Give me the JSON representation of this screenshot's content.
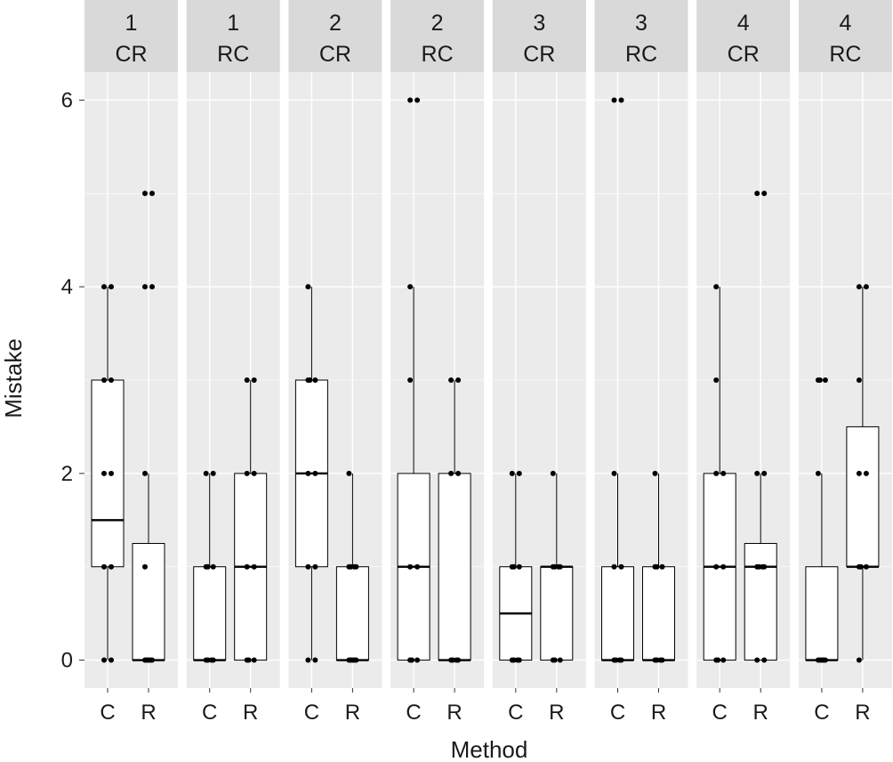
{
  "chart_data": {
    "type": "boxplot",
    "xlabel": "Method",
    "ylabel": "Mistake",
    "ylim": [
      -0.3,
      6.3
    ],
    "y_ticks": [
      0,
      2,
      4,
      6
    ],
    "facet_colors": {
      "panel_bg": "#ebebeb",
      "strip_bg": "#d9d9d9",
      "grid": "#ffffff",
      "box_fill": "#ffffff",
      "box_stroke": "#000000",
      "points": "#000000"
    },
    "panels": [
      {
        "strip": [
          "1",
          "CR"
        ],
        "groups": [
          {
            "x": "C",
            "box": {
              "q1": 1,
              "median": 1.5,
              "q3": 3,
              "whisker_low": 0,
              "whisker_high": 4
            },
            "points": [
              0,
              0,
              1,
              1,
              2,
              2,
              3,
              3,
              4,
              4
            ]
          },
          {
            "x": "R",
            "box": {
              "q1": 0,
              "median": 0,
              "q3": 1.25,
              "whisker_low": 0,
              "whisker_high": 2
            },
            "points": [
              0,
              0,
              0,
              0,
              0,
              1,
              2,
              4,
              4,
              5,
              5
            ]
          }
        ]
      },
      {
        "strip": [
          "1",
          "RC"
        ],
        "groups": [
          {
            "x": "C",
            "box": {
              "q1": 0,
              "median": 0,
              "q3": 1,
              "whisker_low": 0,
              "whisker_high": 2
            },
            "points": [
              0,
              0,
              0,
              0,
              1,
              1,
              1,
              2,
              2
            ]
          },
          {
            "x": "R",
            "box": {
              "q1": 0,
              "median": 1,
              "q3": 2,
              "whisker_low": 0,
              "whisker_high": 3
            },
            "points": [
              0,
              0,
              0,
              1,
              1,
              2,
              2,
              3,
              3
            ]
          }
        ]
      },
      {
        "strip": [
          "2",
          "CR"
        ],
        "groups": [
          {
            "x": "C",
            "box": {
              "q1": 1,
              "median": 2,
              "q3": 3,
              "whisker_low": 0,
              "whisker_high": 4
            },
            "points": [
              0,
              0,
              1,
              1,
              2,
              2,
              3,
              3,
              3,
              4
            ]
          },
          {
            "x": "R",
            "box": {
              "q1": 0,
              "median": 0,
              "q3": 1,
              "whisker_low": 0,
              "whisker_high": 2
            },
            "points": [
              0,
              0,
              0,
              0,
              0,
              1,
              1,
              1,
              1,
              2
            ]
          }
        ]
      },
      {
        "strip": [
          "2",
          "RC"
        ],
        "groups": [
          {
            "x": "C",
            "box": {
              "q1": 0,
              "median": 1,
              "q3": 2,
              "whisker_low": 0,
              "whisker_high": 4
            },
            "points": [
              0,
              0,
              0,
              1,
              1,
              3,
              4,
              6,
              6
            ]
          },
          {
            "x": "R",
            "box": {
              "q1": 0,
              "median": 0,
              "q3": 2,
              "whisker_low": 0,
              "whisker_high": 3
            },
            "points": [
              0,
              0,
              0,
              0,
              2,
              2,
              3,
              3
            ]
          }
        ]
      },
      {
        "strip": [
          "3",
          "CR"
        ],
        "groups": [
          {
            "x": "C",
            "box": {
              "q1": 0,
              "median": 0.5,
              "q3": 1,
              "whisker_low": 0,
              "whisker_high": 2
            },
            "points": [
              0,
              0,
              0,
              0,
              1,
              1,
              1,
              2,
              2
            ]
          },
          {
            "x": "R",
            "box": {
              "q1": 0,
              "median": 1,
              "q3": 1,
              "whisker_low": 0,
              "whisker_high": 2
            },
            "points": [
              0,
              0,
              0,
              1,
              1,
              1,
              1,
              2
            ]
          }
        ]
      },
      {
        "strip": [
          "3",
          "RC"
        ],
        "groups": [
          {
            "x": "C",
            "box": {
              "q1": 0,
              "median": 0,
              "q3": 1,
              "whisker_low": 0,
              "whisker_high": 2
            },
            "points": [
              0,
              0,
              0,
              0,
              1,
              1,
              2,
              6,
              6
            ]
          },
          {
            "x": "R",
            "box": {
              "q1": 0,
              "median": 0,
              "q3": 1,
              "whisker_low": 0,
              "whisker_high": 2
            },
            "points": [
              0,
              0,
              0,
              0,
              1,
              1,
              1,
              2
            ]
          }
        ]
      },
      {
        "strip": [
          "4",
          "CR"
        ],
        "groups": [
          {
            "x": "C",
            "box": {
              "q1": 0,
              "median": 1,
              "q3": 2,
              "whisker_low": 0,
              "whisker_high": 4
            },
            "points": [
              0,
              0,
              0,
              1,
              1,
              2,
              2,
              3,
              4
            ]
          },
          {
            "x": "R",
            "box": {
              "q1": 0,
              "median": 1,
              "q3": 1.25,
              "whisker_low": 0,
              "whisker_high": 2
            },
            "points": [
              0,
              0,
              1,
              1,
              1,
              1,
              2,
              2,
              5,
              5
            ]
          }
        ]
      },
      {
        "strip": [
          "4",
          "RC"
        ],
        "groups": [
          {
            "x": "C",
            "box": {
              "q1": 0,
              "median": 0,
              "q3": 1,
              "whisker_low": 0,
              "whisker_high": 2
            },
            "points": [
              0,
              0,
              0,
              0,
              0,
              2,
              3,
              3,
              3
            ]
          },
          {
            "x": "R",
            "box": {
              "q1": 1,
              "median": 1,
              "q3": 2.5,
              "whisker_low": 0,
              "whisker_high": 4
            },
            "points": [
              0,
              1,
              1,
              1,
              2,
              2,
              3,
              4,
              4
            ]
          }
        ]
      }
    ]
  }
}
